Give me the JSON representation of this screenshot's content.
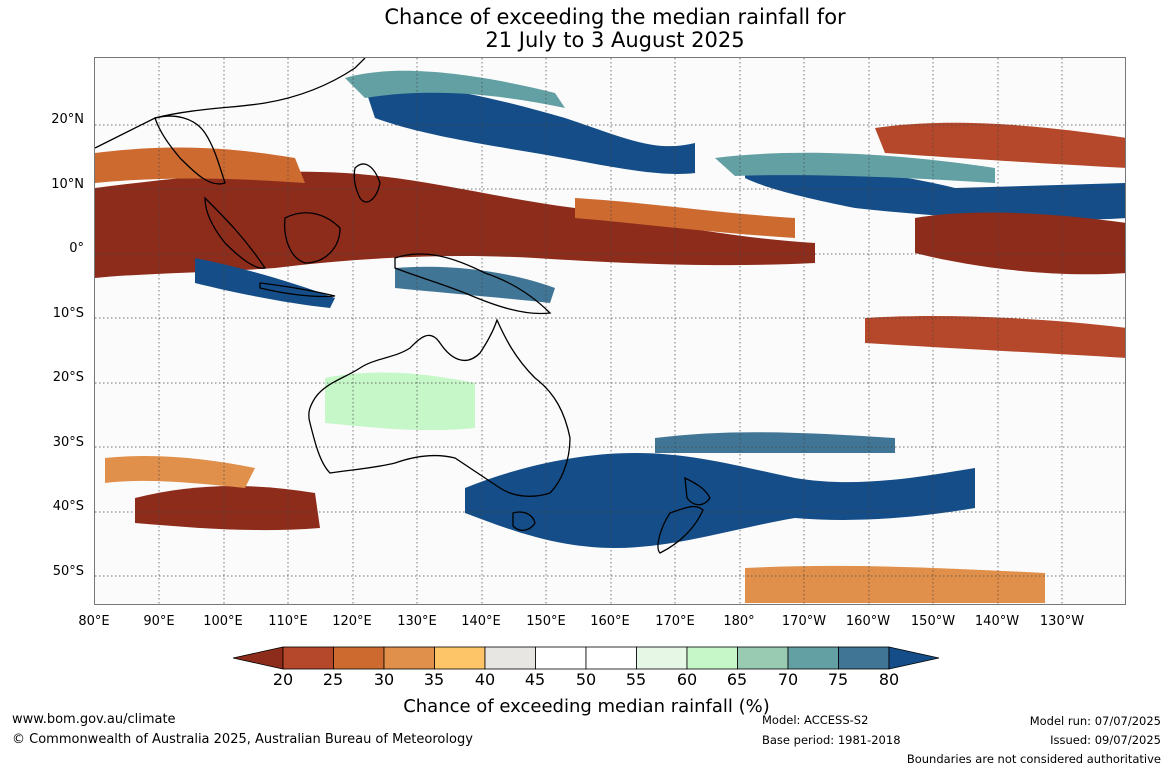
{
  "title": {
    "line1": "Chance of exceeding the median rainfall for",
    "line2": "21 July to 3 August 2025"
  },
  "map": {
    "lat_labels": [
      "20°N",
      "10°N",
      "0°",
      "10°S",
      "20°S",
      "30°S",
      "40°S",
      "50°S"
    ],
    "lon_labels": [
      "80°E",
      "90°E",
      "100°E",
      "110°E",
      "120°E",
      "130°E",
      "140°E",
      "150°E",
      "160°E",
      "170°E",
      "180°",
      "170°W",
      "160°W",
      "150°W",
      "140°W",
      "130°W"
    ],
    "gridlines": "dotted"
  },
  "colorbar": {
    "label": "Chance of exceeding median rainfall (%)",
    "ticks": [
      "20",
      "25",
      "30",
      "35",
      "40",
      "45",
      "50",
      "55",
      "60",
      "65",
      "70",
      "75",
      "80"
    ],
    "colors": [
      "#8e2c1c",
      "#b5482a",
      "#cd6a30",
      "#e0904a",
      "#fdc468",
      "#e8e6e2",
      "#ffffff",
      "#ffffff",
      "#e6f7e6",
      "#c6f7c8",
      "#99cbb2",
      "#63a0a3",
      "#417596",
      "#144d87"
    ]
  },
  "footer": {
    "website": "www.bom.gov.au/climate",
    "copyright": "© Commonwealth of Australia 2025, Australian Bureau of Meteorology",
    "model": "Model: ACCESS-S2",
    "base_period": "Base period: 1981-2018",
    "model_run": "Model run: 07/07/2025",
    "issued": "Issued: 09/07/2025",
    "disclaimer": "Boundaries are not considered authoritative"
  }
}
